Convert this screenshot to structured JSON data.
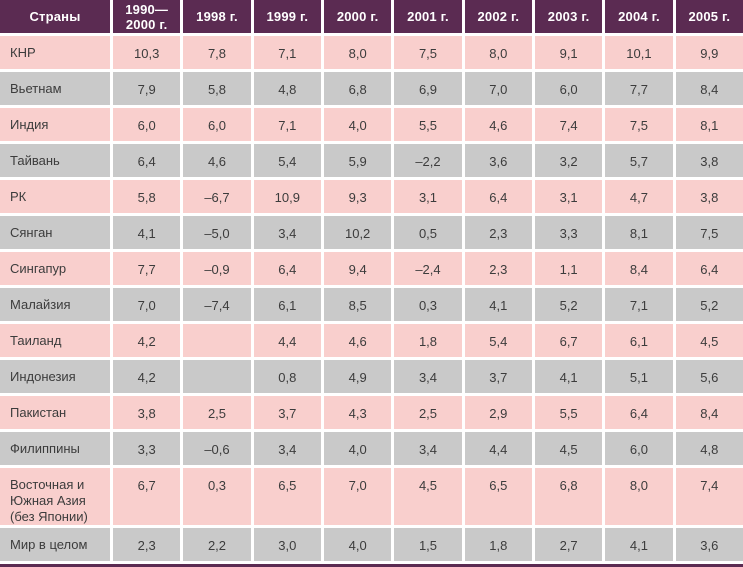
{
  "colors": {
    "header_bg": "#5b2b52",
    "row_pink": "#f9cfcd",
    "row_gray": "#c9c9c9",
    "header_text": "#ffffff",
    "cell_text": "#3c3c3c"
  },
  "chart_data": {
    "type": "table",
    "title": "",
    "columns": [
      "Страны",
      "1990—2000 г.",
      "1998 г.",
      "1999 г.",
      "2000 г.",
      "2001 г.",
      "2002 г.",
      "2003 г.",
      "2004 г.",
      "2005 г."
    ],
    "rows": [
      {
        "country": "КНР",
        "values": [
          "10,3",
          "7,8",
          "7,1",
          "8,0",
          "7,5",
          "8,0",
          "9,1",
          "10,1",
          "9,9"
        ]
      },
      {
        "country": "Вьетнам",
        "values": [
          "7,9",
          "5,8",
          "4,8",
          "6,8",
          "6,9",
          "7,0",
          "6,0",
          "7,7",
          "8,4"
        ]
      },
      {
        "country": "Индия",
        "values": [
          "6,0",
          "6,0",
          "7,1",
          "4,0",
          "5,5",
          "4,6",
          "7,4",
          "7,5",
          "8,1"
        ]
      },
      {
        "country": "Тайвань",
        "values": [
          "6,4",
          "4,6",
          "5,4",
          "5,9",
          "–2,2",
          "3,6",
          "3,2",
          "5,7",
          "3,8"
        ]
      },
      {
        "country": "РК",
        "values": [
          "5,8",
          "–6,7",
          "10,9",
          "9,3",
          "3,1",
          "6,4",
          "3,1",
          "4,7",
          "3,8"
        ]
      },
      {
        "country": "Сянган",
        "values": [
          "4,1",
          "–5,0",
          "3,4",
          "10,2",
          "0,5",
          "2,3",
          "3,3",
          "8,1",
          "7,5"
        ]
      },
      {
        "country": "Сингапур",
        "values": [
          "7,7",
          "–0,9",
          "6,4",
          "9,4",
          "–2,4",
          "2,3",
          "1,1",
          "8,4",
          "6,4"
        ]
      },
      {
        "country": "Малайзия",
        "values": [
          "7,0",
          "–7,4",
          "6,1",
          "8,5",
          "0,3",
          "4,1",
          "5,2",
          "7,1",
          "5,2"
        ]
      },
      {
        "country": "Таиланд",
        "values": [
          "4,2",
          "",
          "4,4",
          "4,6",
          "1,8",
          "5,4",
          "6,7",
          "6,1",
          "4,5"
        ]
      },
      {
        "country": "Индонезия",
        "values": [
          "4,2",
          "",
          "0,8",
          "4,9",
          "3,4",
          "3,7",
          "4,1",
          "5,1",
          "5,6"
        ]
      },
      {
        "country": "Пакистан",
        "values": [
          "3,8",
          "2,5",
          "3,7",
          "4,3",
          "2,5",
          "2,9",
          "5,5",
          "6,4",
          "8,4"
        ]
      },
      {
        "country": "Филиппины",
        "values": [
          "3,3",
          "–0,6",
          "3,4",
          "4,0",
          "3,4",
          "4,4",
          "4,5",
          "6,0",
          "4,8"
        ]
      },
      {
        "country": "Восточная и Южная Азия (без Японии)",
        "values": [
          "6,7",
          "0,3",
          "6,5",
          "7,0",
          "4,5",
          "6,5",
          "6,8",
          "8,0",
          "7,4"
        ]
      },
      {
        "country": "Мир в целом",
        "values": [
          "2,3",
          "2,2",
          "3,0",
          "4,0",
          "1,5",
          "1,8",
          "2,7",
          "4,1",
          "3,6"
        ]
      }
    ]
  }
}
